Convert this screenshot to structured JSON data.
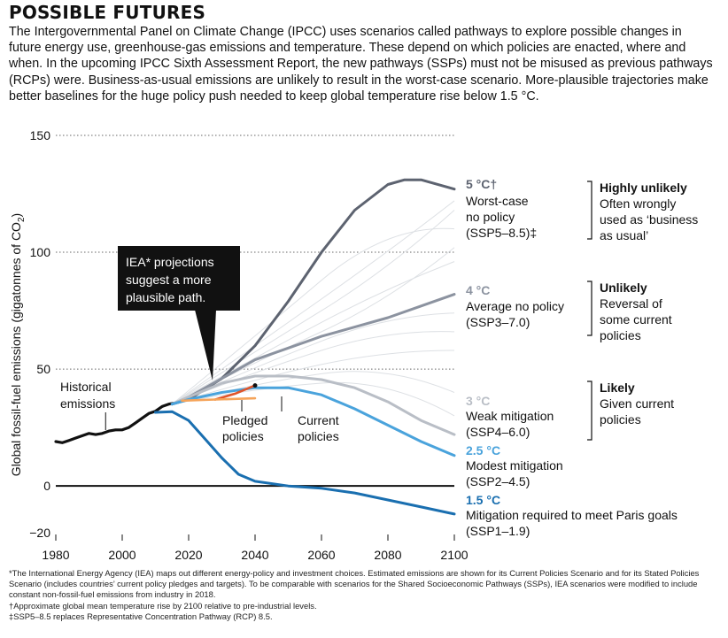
{
  "title": "POSSIBLE FUTURES",
  "intro": "The Intergovernmental Panel on Climate Change (IPCC) uses scenarios called pathways to explore possible changes in future energy use, greenhouse-gas emissions and temperature. These depend on which policies are enacted, where and when. In the upcoming IPCC Sixth Assessment Report, the new pathways (SSPs) must not be misused as previous pathways (RCPs) were. Business-as-usual emissions are unlikely to result in the worst-case scenario. More-plausible trajectories make better baselines for the huge policy push needed to keep global temperature rise below 1.5 °C.",
  "footnotes": [
    "*The International Energy Agency (IEA) maps out different energy-policy and investment choices. Estimated emissions are shown for its Current Policies Scenario and for its Stated Policies Scenario (includes countries’ current policy pledges and targets). To be comparable with scenarios for the Shared Socioeconomic Pathways (SSPs), IEA scenarios were modified to include constant non-fossil-fuel emissions from industry in 2018.",
    "†Approximate global mean temperature rise by 2100 relative to pre-industrial levels.",
    "‡SSP5–8.5 replaces Representative Concentration Pathway (RCP) 8.5."
  ],
  "annotations": {
    "historical": [
      "Historical",
      "emissions"
    ],
    "pledged": [
      "Pledged",
      "policies"
    ],
    "current": [
      "Current",
      "policies"
    ],
    "iea_callout": [
      "IEA* projections",
      "suggest a more",
      "plausible path."
    ]
  },
  "likelihood": [
    {
      "head": "Highly unlikely",
      "lines": [
        "Often wrongly",
        "used as ‘business",
        "as usual’"
      ]
    },
    {
      "head": "Unlikely",
      "lines": [
        "Reversal of",
        "some current",
        "policies"
      ]
    },
    {
      "head": "Likely",
      "lines": [
        "Given current",
        "policies"
      ]
    }
  ],
  "chart_data": {
    "type": "line",
    "ylabel": "Global fossil-fuel emissions (gigatonnes of CO2)",
    "xlabel": "",
    "xlim": [
      1980,
      2100
    ],
    "ylim": [
      -20,
      150
    ],
    "x_ticks": [
      1980,
      2000,
      2020,
      2040,
      2060,
      2080,
      2100
    ],
    "y_ticks": [
      -20,
      0,
      50,
      100,
      150
    ],
    "grid": "dotted horizontal at 50, 100, 150",
    "series": [
      {
        "name": "Historical emissions",
        "color": "#111111",
        "points": [
          [
            1980,
            19
          ],
          [
            1982,
            18.5
          ],
          [
            1984,
            19.5
          ],
          [
            1986,
            20.5
          ],
          [
            1988,
            21.5
          ],
          [
            1990,
            22.5
          ],
          [
            1992,
            22
          ],
          [
            1994,
            22.5
          ],
          [
            1996,
            23.5
          ],
          [
            1998,
            24
          ],
          [
            2000,
            24
          ],
          [
            2002,
            25
          ],
          [
            2004,
            27
          ],
          [
            2006,
            29
          ],
          [
            2008,
            31
          ],
          [
            2010,
            32
          ],
          [
            2012,
            34
          ],
          [
            2014,
            35
          ],
          [
            2016,
            35.5
          ],
          [
            2018,
            36.5
          ]
        ]
      },
      {
        "name": "SSP5–8.5",
        "temp": "5 °C†",
        "labels": [
          "Worst-case",
          "no policy",
          "(SSP5–8.5)‡"
        ],
        "color": "#5d6370",
        "points": [
          [
            2015,
            35
          ],
          [
            2020,
            37
          ],
          [
            2030,
            46
          ],
          [
            2040,
            60
          ],
          [
            2050,
            79
          ],
          [
            2060,
            100
          ],
          [
            2070,
            118
          ],
          [
            2080,
            129
          ],
          [
            2085,
            131
          ],
          [
            2090,
            131
          ],
          [
            2100,
            127
          ]
        ]
      },
      {
        "name": "SSP3–7.0",
        "temp": "4 °C",
        "labels": [
          "Average no policy",
          "(SSP3–7.0)"
        ],
        "color": "#8c93a0",
        "points": [
          [
            2015,
            35
          ],
          [
            2020,
            38
          ],
          [
            2030,
            46
          ],
          [
            2040,
            54
          ],
          [
            2050,
            59
          ],
          [
            2060,
            64
          ],
          [
            2070,
            68
          ],
          [
            2080,
            72
          ],
          [
            2090,
            77
          ],
          [
            2100,
            82
          ]
        ]
      },
      {
        "name": "SSP4–6.0",
        "temp": "3 °C",
        "labels": [
          "Weak mitigation",
          "(SSP4–6.0)"
        ],
        "color": "#b9bec6",
        "points": [
          [
            2015,
            35
          ],
          [
            2020,
            38
          ],
          [
            2030,
            44
          ],
          [
            2040,
            47
          ],
          [
            2050,
            47
          ],
          [
            2060,
            45.5
          ],
          [
            2070,
            42
          ],
          [
            2080,
            36
          ],
          [
            2090,
            28
          ],
          [
            2100,
            22
          ]
        ]
      },
      {
        "name": "SSP2–4.5",
        "temp": "2.5 °C",
        "labels": [
          "Modest mitigation",
          "(SSP2–4.5)"
        ],
        "color": "#4aa3dc",
        "points": [
          [
            2015,
            35
          ],
          [
            2020,
            37
          ],
          [
            2030,
            40
          ],
          [
            2040,
            42
          ],
          [
            2050,
            42
          ],
          [
            2060,
            39
          ],
          [
            2070,
            33
          ],
          [
            2080,
            26
          ],
          [
            2090,
            19
          ],
          [
            2100,
            13
          ]
        ]
      },
      {
        "name": "SSP1–1.9",
        "temp": "1.5 °C",
        "labels": [
          "Mitigation required to meet Paris goals",
          "(SSP1–1.9)"
        ],
        "color": "#1a6fb0",
        "points": [
          [
            2010,
            31.5
          ],
          [
            2015,
            31.8
          ],
          [
            2020,
            28
          ],
          [
            2025,
            20
          ],
          [
            2030,
            12
          ],
          [
            2035,
            5
          ],
          [
            2040,
            2
          ],
          [
            2050,
            0
          ],
          [
            2060,
            -1
          ],
          [
            2070,
            -3
          ],
          [
            2080,
            -6
          ],
          [
            2090,
            -9
          ],
          [
            2100,
            -12
          ]
        ]
      },
      {
        "name": "IEA Current policies",
        "color": "#e0552a",
        "points": [
          [
            2028,
            37
          ],
          [
            2034,
            39.5
          ],
          [
            2040,
            43
          ]
        ]
      },
      {
        "name": "IEA Pledged policies",
        "color": "#f5a45a",
        "points": [
          [
            2018,
            36.5
          ],
          [
            2028,
            37
          ],
          [
            2040,
            37.5
          ]
        ]
      }
    ]
  }
}
